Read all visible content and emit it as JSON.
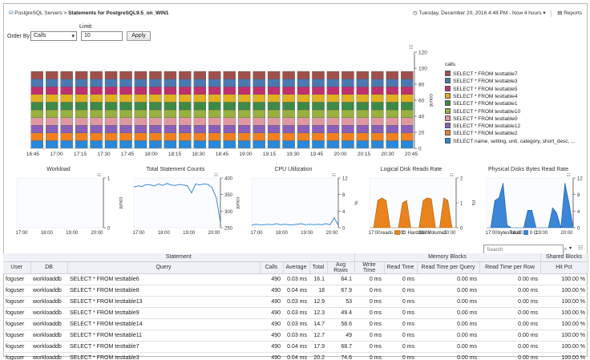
{
  "breadcrumb": {
    "root": "PostgreSQL Servers",
    "separator": ">",
    "current": "Statements for PostgreSQL9.5_on_WIN1"
  },
  "time": {
    "label": "Tuesday, December 20, 2016 4:48 PM - Now 4 hours"
  },
  "reports": {
    "label": "Reports"
  },
  "controls": {
    "order_label": "Order By:",
    "order_value": "Calls",
    "limit_label": "Limit:",
    "limit_value": "10",
    "apply_label": "Apply"
  },
  "main_chart": {
    "legend_title": "calls",
    "y_label": "count",
    "x_ticks": [
      "16:45",
      "17:00",
      "17:15",
      "17:30",
      "17:45",
      "18:00",
      "18:15",
      "18:30",
      "18:45",
      "19:00",
      "19:15",
      "19:30",
      "19:45",
      "20:00",
      "20:15",
      "20:30",
      "20:45"
    ],
    "y_ticks": [
      "0",
      "20",
      "40",
      "60",
      "80",
      "100",
      "120"
    ],
    "series": [
      {
        "name": "SELECT * FROM testtable7",
        "color": "#a0504c"
      },
      {
        "name": "SELECT * FROM testtable3",
        "color": "#4a78b0"
      },
      {
        "name": "SELECT * FROM testtable5",
        "color": "#c0306c"
      },
      {
        "name": "SELECT * FROM testtable4",
        "color": "#e0b020"
      },
      {
        "name": "SELECT * FROM testtable1",
        "color": "#3c8a46"
      },
      {
        "name": "SELECT * FROM testtable10",
        "color": "#98b040"
      },
      {
        "name": "SELECT * FROM testtable0",
        "color": "#e098a0"
      },
      {
        "name": "SELECT * FROM testtable12",
        "color": "#8860b8"
      },
      {
        "name": "SELECT * FROM testtable2",
        "color": "#f08020"
      },
      {
        "name": "SELECT name, setting, unit, category, short_desc, ...",
        "color": "#2a88d8"
      }
    ]
  },
  "mini_charts": [
    {
      "title": "Workload",
      "y_label": "count",
      "y_ticks": [
        "0",
        "1"
      ],
      "x_ticks": [
        "17:00",
        "18:00",
        "19:00",
        "20:00"
      ]
    },
    {
      "title": "Total Statement Counts",
      "y_label": "count",
      "y_ticks": [
        "250",
        "300",
        "350",
        "400"
      ],
      "x_ticks": [
        "17:00",
        "18:00",
        "19:00",
        "20:00"
      ]
    },
    {
      "title": "CPU Utilization",
      "y_label": "%",
      "y_ticks": [
        "0",
        "4",
        "8",
        "12"
      ],
      "x_ticks": [
        "17:00",
        "18:00",
        "19:00",
        "20:00"
      ]
    },
    {
      "title": "Logical Disk Reads Rate",
      "y_label": "r/s",
      "y_ticks": [
        "0",
        "1",
        "2"
      ],
      "x_ticks": [
        "17:00",
        "18:00",
        "19:00",
        "20:00"
      ],
      "legend": "reads",
      "legend2": "C: Harddisk Volume1"
    },
    {
      "title": "Physical Disks Bytes Read Rate",
      "y_label": "KB/s",
      "y_ticks": [
        "0",
        "4",
        "8",
        "12"
      ],
      "x_ticks": [
        "17:00",
        "18:00",
        "19:00",
        "20:00"
      ],
      "legend": "bytesRead",
      "legend2": "0 C:"
    }
  ],
  "search": {
    "placeholder": "Search"
  },
  "table": {
    "group_statement": "Statement",
    "group_memory": "Memory Blocks",
    "group_shared": "Shared Blocks",
    "columns": [
      "User",
      "DB",
      "Query",
      "Calls",
      "Average",
      "Total",
      "Avg Rows",
      "Write Time",
      "Read Time",
      "Read Time per Query",
      "Read Time per Row",
      "Hit Pct"
    ],
    "rows": [
      [
        "foguser",
        "workloaddb",
        "SELECT * FROM testtable6",
        "490",
        "0.03 ms",
        "16.1",
        "64.1",
        "0 ms",
        "0 ms",
        "0.00 ms",
        "0.00 ms",
        "100.00 %"
      ],
      [
        "foguser",
        "workloaddb",
        "SELECT * FROM testtable8",
        "490",
        "0.04 ms",
        "18",
        "67.9",
        "0 ms",
        "0 ms",
        "0.00 ms",
        "0.00 ms",
        "100.00 %"
      ],
      [
        "foguser",
        "workloaddb",
        "SELECT * FROM testtable13",
        "490",
        "0.03 ms",
        "12.9",
        "53",
        "0 ms",
        "0 ms",
        "0.00 ms",
        "0.00 ms",
        "100.00 %"
      ],
      [
        "foguser",
        "workloaddb",
        "SELECT * FROM testtable9",
        "490",
        "0.03 ms",
        "12.3",
        "49.4",
        "0 ms",
        "0 ms",
        "0.00 ms",
        "0.00 ms",
        "100.00 %"
      ],
      [
        "foguser",
        "workloaddb",
        "SELECT * FROM testtable14",
        "490",
        "0.03 ms",
        "14.7",
        "58.6",
        "0 ms",
        "0 ms",
        "0.00 ms",
        "0.00 ms",
        "100.00 %"
      ],
      [
        "foguser",
        "workloaddb",
        "SELECT * FROM testtable11",
        "490",
        "0.03 ms",
        "12.7",
        "49",
        "0 ms",
        "0 ms",
        "0.00 ms",
        "0.00 ms",
        "100.00 %"
      ],
      [
        "foguser",
        "workloaddb",
        "SELECT * FROM testtable7",
        "490",
        "0.04 ms",
        "17.9",
        "68.7",
        "0 ms",
        "0 ms",
        "0.00 ms",
        "0.00 ms",
        "100.00 %"
      ],
      [
        "foguser",
        "workloaddb",
        "SELECT * FROM testtable3",
        "490",
        "0.04 ms",
        "20.2",
        "74.6",
        "0 ms",
        "0 ms",
        "0.00 ms",
        "0.00 ms",
        "100.00 %"
      ]
    ]
  }
}
